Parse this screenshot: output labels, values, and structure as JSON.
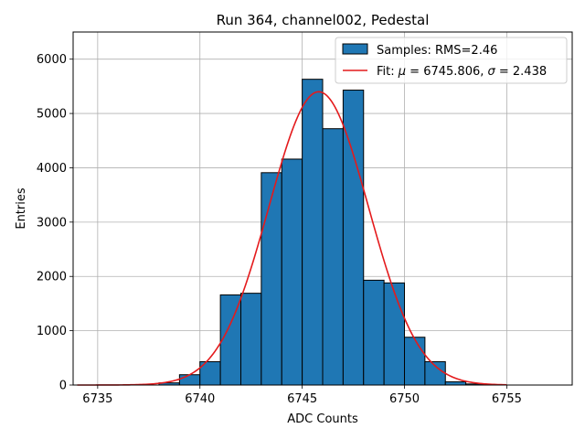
{
  "chart_data": {
    "type": "histogram",
    "title": "Run 364, channel002, Pedestal",
    "xlabel": "ADC Counts",
    "ylabel": "Entries",
    "xlim": [
      6733.8,
      6758.2
    ],
    "ylim": [
      0,
      6500
    ],
    "xticks": [
      6735,
      6740,
      6745,
      6750,
      6755
    ],
    "yticks": [
      0,
      1000,
      2000,
      3000,
      4000,
      5000,
      6000
    ],
    "grid": true,
    "legend_position": "top-right",
    "bar_color": "#1f77b4",
    "fit_color": "#e41a1c",
    "bins": [
      {
        "x0": 6738,
        "x1": 6739,
        "count": 40
      },
      {
        "x0": 6739,
        "x1": 6740,
        "count": 190
      },
      {
        "x0": 6740,
        "x1": 6741,
        "count": 430
      },
      {
        "x0": 6741,
        "x1": 6742,
        "count": 1660
      },
      {
        "x0": 6742,
        "x1": 6743,
        "count": 1690
      },
      {
        "x0": 6743,
        "x1": 6744,
        "count": 3910
      },
      {
        "x0": 6744,
        "x1": 6745,
        "count": 4160
      },
      {
        "x0": 6745,
        "x1": 6746,
        "count": 5630
      },
      {
        "x0": 6746,
        "x1": 6747,
        "count": 4720
      },
      {
        "x0": 6747,
        "x1": 6748,
        "count": 5430
      },
      {
        "x0": 6748,
        "x1": 6749,
        "count": 1930
      },
      {
        "x0": 6749,
        "x1": 6750,
        "count": 1880
      },
      {
        "x0": 6750,
        "x1": 6751,
        "count": 880
      },
      {
        "x0": 6751,
        "x1": 6752,
        "count": 430
      },
      {
        "x0": 6752,
        "x1": 6753,
        "count": 60
      },
      {
        "x0": 6753,
        "x1": 6754,
        "count": 20
      }
    ],
    "fit": {
      "mu": 6745.806,
      "sigma": 2.438,
      "amplitude": 5400,
      "x_range": [
        6734,
        6755
      ]
    },
    "legend": {
      "samples_label": "Samples: RMS=2.46",
      "fit_prefix": "Fit: ",
      "fit_mu_symbol": "μ",
      "fit_mu_text": " = 6745.806, ",
      "fit_sigma_symbol": "σ",
      "fit_sigma_text": " = 2.438"
    }
  }
}
